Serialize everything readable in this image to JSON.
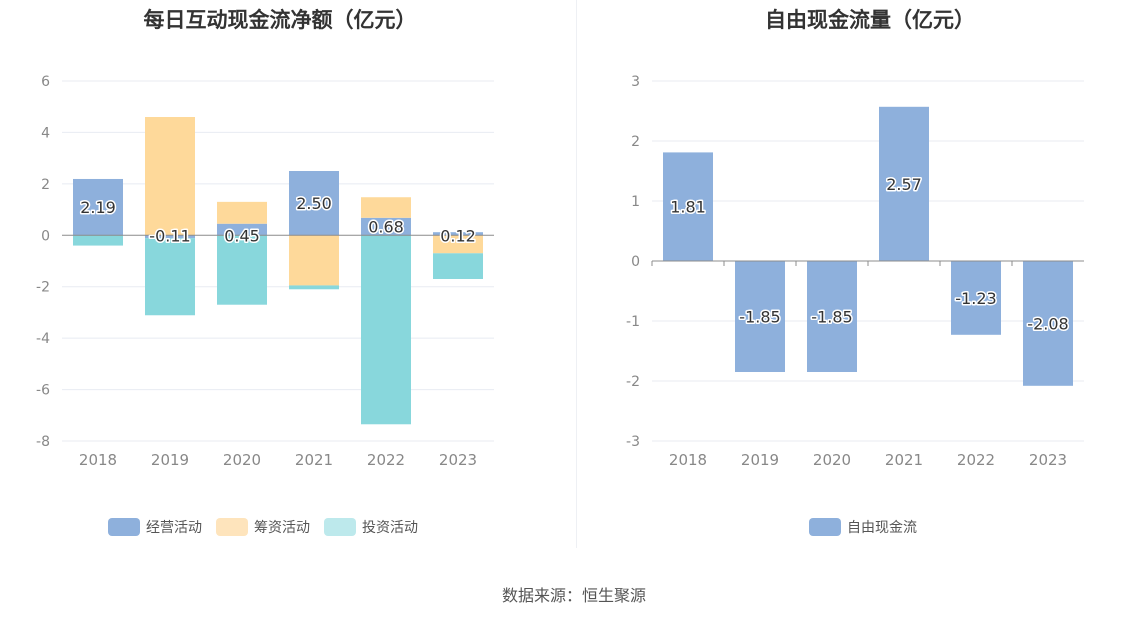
{
  "source": "数据来源：恒生聚源",
  "chart_data": [
    {
      "type": "bar",
      "stacked": true,
      "title": "每日互动现金流净额（亿元）",
      "categories": [
        "2018",
        "2019",
        "2020",
        "2021",
        "2022",
        "2023"
      ],
      "ylim": [
        -8,
        6
      ],
      "yticks": [
        6,
        4,
        2,
        0,
        -2,
        -4,
        -6,
        -8
      ],
      "grid": true,
      "legend_position": "bottom",
      "series": [
        {
          "name": "经营活动",
          "color": "#8eb0dc",
          "values": [
            2.19,
            -0.11,
            0.45,
            2.5,
            0.68,
            0.12
          ]
        },
        {
          "name": "筹资活动",
          "color": "#fed99a",
          "values": [
            0,
            4.6,
            0.85,
            -1.95,
            0.8,
            -0.7
          ]
        },
        {
          "name": "投资活动",
          "color": "#88d7dc",
          "values": [
            -0.4,
            -3.0,
            -2.7,
            -0.15,
            -7.35,
            -1.0
          ]
        }
      ],
      "data_labels": [
        "2.19",
        "-0.11",
        "0.45",
        "2.50",
        "0.68",
        "0.12"
      ]
    },
    {
      "type": "bar",
      "title": "自由现金流量（亿元）",
      "categories": [
        "2018",
        "2019",
        "2020",
        "2021",
        "2022",
        "2023"
      ],
      "ylim": [
        -3,
        3
      ],
      "yticks": [
        3,
        2,
        1,
        0,
        -1,
        -2,
        -3
      ],
      "grid": true,
      "legend_position": "bottom",
      "series": [
        {
          "name": "自由现金流",
          "color": "#8eb0dc",
          "values": [
            1.81,
            -1.85,
            -1.85,
            2.57,
            -1.23,
            -2.08
          ]
        }
      ],
      "data_labels": [
        "1.81",
        "-1.85",
        "-1.85",
        "2.57",
        "-1.23",
        "-2.08"
      ]
    }
  ]
}
